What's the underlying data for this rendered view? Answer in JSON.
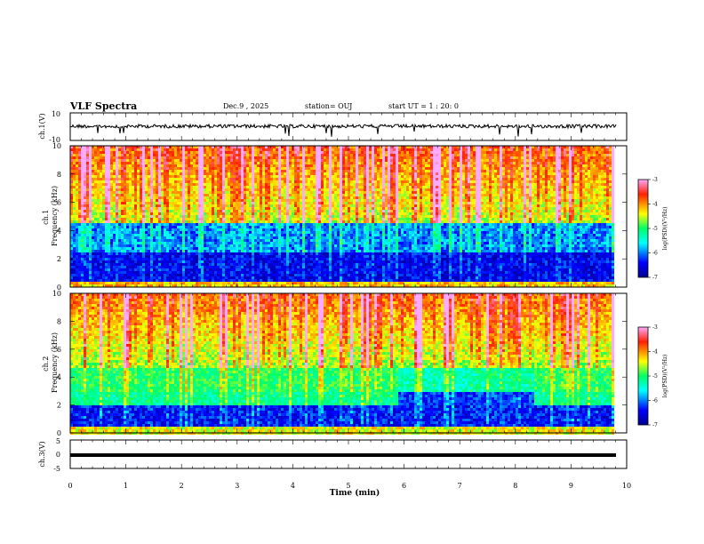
{
  "header": {
    "title": "VLF Spectra",
    "date": "Dec.9 , 2025",
    "station": "station= OUJ",
    "start": "start UT = 1 : 20: 0"
  },
  "chart_data": [
    {
      "type": "line",
      "ylabel": "ch.1(V)",
      "ylim": [
        -10,
        10
      ],
      "yticks": [
        "10",
        "-10"
      ],
      "xlim": [
        0,
        10
      ]
    },
    {
      "type": "heatmap",
      "ylabel": "ch.1 Frequency (kHz)",
      "ylim": [
        0,
        10
      ],
      "yticks": [
        "0",
        "2",
        "4",
        "6",
        "8",
        "10"
      ],
      "xlim": [
        0,
        10
      ],
      "colorbar": {
        "label": "log(PSD)(V²/Hz)",
        "ticks": [
          "-3",
          "-4",
          "-5",
          "-6",
          "-7"
        ],
        "range": [
          -7,
          -3
        ]
      }
    },
    {
      "type": "heatmap",
      "ylabel": "ch.2 Frequency (kHz)",
      "ylim": [
        0,
        10
      ],
      "yticks": [
        "0",
        "2",
        "4",
        "6",
        "8",
        "10"
      ],
      "xlim": [
        0,
        10
      ],
      "colorbar": {
        "label": "log(PSD)(V²/Hz)",
        "ticks": [
          "-3",
          "-4",
          "-5",
          "-6",
          "-7"
        ],
        "range": [
          -7,
          -3
        ]
      }
    },
    {
      "type": "line",
      "ylabel": "ch.3(V)",
      "ylim": [
        -5,
        5
      ],
      "yticks": [
        "5",
        "0",
        "-5"
      ],
      "xlim": [
        0,
        10
      ],
      "xlabel": "Time (min)",
      "xticks": [
        "0",
        "1",
        "2",
        "3",
        "4",
        "5",
        "6",
        "7",
        "8",
        "9",
        "10"
      ]
    }
  ]
}
